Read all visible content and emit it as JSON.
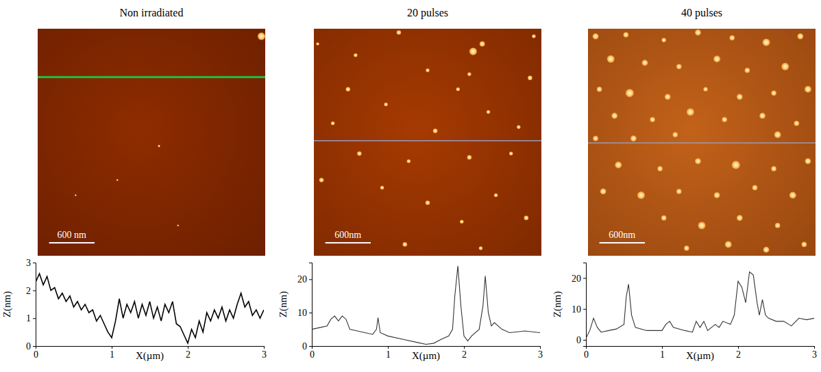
{
  "chart_data": [
    {
      "type": "line",
      "title": "Non irradiated",
      "color": "#000000",
      "x": [
        0,
        0.05,
        0.1,
        0.15,
        0.2,
        0.25,
        0.3,
        0.35,
        0.4,
        0.45,
        0.5,
        0.55,
        0.6,
        0.65,
        0.7,
        0.75,
        0.8,
        0.85,
        0.9,
        0.95,
        1.0,
        1.05,
        1.1,
        1.15,
        1.2,
        1.25,
        1.3,
        1.35,
        1.4,
        1.45,
        1.5,
        1.55,
        1.6,
        1.65,
        1.7,
        1.75,
        1.8,
        1.85,
        1.9,
        1.95,
        2.0,
        2.05,
        2.1,
        2.15,
        2.2,
        2.25,
        2.3,
        2.35,
        2.4,
        2.45,
        2.5,
        2.55,
        2.6,
        2.65,
        2.7,
        2.75,
        2.8,
        2.85,
        2.9,
        2.95,
        3.0
      ],
      "values": [
        2.3,
        2.6,
        2.2,
        2.5,
        2.0,
        2.1,
        1.7,
        1.9,
        1.6,
        1.8,
        1.4,
        1.6,
        1.3,
        1.5,
        1.2,
        1.3,
        0.9,
        1.1,
        0.8,
        0.5,
        0.3,
        0.9,
        1.7,
        1.0,
        1.5,
        1.2,
        1.6,
        1.0,
        1.5,
        1.1,
        1.6,
        1.0,
        1.4,
        0.9,
        1.5,
        1.2,
        1.6,
        0.8,
        0.7,
        0.4,
        0.1,
        0.6,
        0.3,
        0.9,
        0.5,
        1.2,
        0.9,
        1.3,
        1.0,
        1.4,
        0.9,
        1.3,
        1.0,
        1.5,
        1.9,
        1.4,
        1.6,
        1.1,
        1.3,
        1.0,
        1.3
      ],
      "xlim": [
        0,
        3
      ],
      "xticks": [
        0,
        1,
        2,
        3
      ],
      "ylim": [
        0,
        3
      ],
      "yticks": [
        0,
        1,
        2,
        3
      ],
      "x_label": "X(µm)",
      "y_label": "Z(nm)",
      "image": {
        "size": 3,
        "profile_y": 0.64,
        "scale_bar": {
          "length": 0.6,
          "label": "600 nm"
        },
        "particles": [
          [
            2.95,
            0.1,
            0.05
          ],
          [
            1.6,
            1.55,
            0.015
          ],
          [
            1.05,
            2.0,
            0.012
          ],
          [
            1.85,
            2.6,
            0.012
          ],
          [
            0.5,
            2.2,
            0.012
          ]
        ]
      }
    },
    {
      "type": "line",
      "title": "20 pulses",
      "color": "#333333",
      "x": [
        0,
        0.1,
        0.2,
        0.25,
        0.3,
        0.35,
        0.4,
        0.45,
        0.5,
        0.6,
        0.7,
        0.8,
        0.85,
        0.87,
        0.9,
        1.0,
        1.2,
        1.4,
        1.5,
        1.6,
        1.7,
        1.8,
        1.85,
        1.88,
        1.92,
        1.96,
        2.0,
        2.05,
        2.1,
        2.2,
        2.25,
        2.28,
        2.32,
        2.36,
        2.4,
        2.5,
        2.6,
        2.8,
        3.0
      ],
      "values": [
        5,
        5.5,
        6,
        8,
        9,
        7.5,
        9,
        8,
        5,
        4.5,
        4,
        3.5,
        5,
        8.5,
        4,
        3,
        2,
        1,
        0.5,
        0.8,
        2,
        3,
        5,
        15,
        24,
        12,
        3,
        1.5,
        3,
        5,
        12,
        21,
        10,
        6,
        7,
        5,
        4,
        4.5,
        4
      ],
      "xlim": [
        0,
        3
      ],
      "xticks": [
        0,
        1,
        2,
        3
      ],
      "ylim": [
        0,
        25
      ],
      "yticks": [
        0,
        10,
        20
      ],
      "x_label": "X(µm)",
      "y_label": "Z(nm)",
      "image": {
        "size": 3,
        "profile_y": 1.48,
        "scale_bar": {
          "length": 0.6,
          "label": "600nm"
        },
        "particles": [
          [
            1.12,
            0.05,
            0.03
          ],
          [
            2.1,
            0.3,
            0.05
          ],
          [
            2.22,
            0.2,
            0.035
          ],
          [
            0.05,
            0.2,
            0.02
          ],
          [
            0.55,
            0.35,
            0.025
          ],
          [
            1.5,
            0.55,
            0.025
          ],
          [
            2.05,
            0.6,
            0.025
          ],
          [
            2.85,
            0.65,
            0.03
          ],
          [
            0.45,
            0.8,
            0.03
          ],
          [
            1.9,
            0.8,
            0.025
          ],
          [
            0.95,
            1.0,
            0.025
          ],
          [
            2.3,
            1.1,
            0.025
          ],
          [
            0.25,
            1.25,
            0.025
          ],
          [
            1.6,
            1.35,
            0.03
          ],
          [
            2.7,
            1.3,
            0.025
          ],
          [
            0.6,
            1.65,
            0.03
          ],
          [
            1.25,
            1.75,
            0.025
          ],
          [
            2.05,
            1.7,
            0.03
          ],
          [
            2.6,
            1.65,
            0.025
          ],
          [
            0.1,
            2.0,
            0.03
          ],
          [
            0.9,
            2.1,
            0.025
          ],
          [
            1.5,
            2.3,
            0.03
          ],
          [
            2.4,
            2.2,
            0.025
          ],
          [
            1.95,
            2.55,
            0.025
          ],
          [
            2.8,
            2.5,
            0.03
          ],
          [
            1.2,
            2.85,
            0.03
          ],
          [
            2.2,
            2.9,
            0.025
          ],
          [
            2.9,
            0.1,
            0.025
          ]
        ]
      }
    },
    {
      "type": "line",
      "title": "40 pulses",
      "color": "#333333",
      "x": [
        0,
        0.05,
        0.1,
        0.15,
        0.2,
        0.3,
        0.4,
        0.5,
        0.53,
        0.56,
        0.6,
        0.65,
        0.8,
        1.0,
        1.05,
        1.1,
        1.15,
        1.3,
        1.4,
        1.45,
        1.5,
        1.55,
        1.6,
        1.7,
        1.75,
        1.8,
        1.9,
        1.95,
        2.0,
        2.05,
        2.1,
        2.15,
        2.2,
        2.25,
        2.28,
        2.32,
        2.36,
        2.4,
        2.5,
        2.6,
        2.7,
        2.8,
        2.9,
        3.0
      ],
      "values": [
        0.5,
        3,
        7,
        4,
        2.5,
        3,
        3.5,
        5,
        14,
        18,
        8,
        4,
        3,
        3,
        5,
        6,
        4,
        3,
        2.5,
        6,
        4,
        6,
        3,
        5,
        4,
        6,
        5,
        8,
        19,
        17,
        12,
        22,
        21,
        12,
        8,
        13,
        8,
        7,
        6,
        6,
        4.5,
        7,
        6.5,
        7
      ],
      "xlim": [
        0,
        3
      ],
      "xticks": [
        0,
        1,
        2,
        3
      ],
      "ylim": [
        -2,
        25
      ],
      "yticks": [
        0,
        10,
        20
      ],
      "x_label": "X(µm)",
      "y_label": "Z(nm)",
      "image": {
        "size": 3,
        "profile_y": 1.51,
        "scale_bar": {
          "length": 0.6,
          "label": "600nm"
        },
        "particles": [
          [
            0.1,
            0.1,
            0.04
          ],
          [
            0.5,
            0.08,
            0.035
          ],
          [
            1.0,
            0.15,
            0.03
          ],
          [
            1.45,
            0.05,
            0.04
          ],
          [
            1.9,
            0.12,
            0.035
          ],
          [
            2.35,
            0.18,
            0.05
          ],
          [
            2.8,
            0.1,
            0.04
          ],
          [
            0.3,
            0.4,
            0.05
          ],
          [
            0.75,
            0.45,
            0.04
          ],
          [
            1.2,
            0.5,
            0.035
          ],
          [
            1.7,
            0.4,
            0.045
          ],
          [
            2.1,
            0.55,
            0.035
          ],
          [
            2.6,
            0.5,
            0.05
          ],
          [
            0.15,
            0.8,
            0.035
          ],
          [
            0.55,
            0.85,
            0.055
          ],
          [
            1.05,
            0.9,
            0.04
          ],
          [
            1.55,
            0.8,
            0.03
          ],
          [
            2.0,
            0.9,
            0.04
          ],
          [
            2.45,
            0.85,
            0.035
          ],
          [
            2.9,
            0.8,
            0.045
          ],
          [
            0.35,
            1.15,
            0.04
          ],
          [
            0.85,
            1.2,
            0.035
          ],
          [
            1.35,
            1.1,
            0.05
          ],
          [
            1.8,
            1.2,
            0.035
          ],
          [
            2.3,
            1.15,
            0.04
          ],
          [
            2.75,
            1.25,
            0.035
          ],
          [
            0.1,
            1.45,
            0.035
          ],
          [
            0.6,
            1.45,
            0.04
          ],
          [
            1.15,
            1.4,
            0.035
          ],
          [
            2.5,
            1.4,
            0.045
          ],
          [
            0.4,
            1.8,
            0.045
          ],
          [
            0.95,
            1.85,
            0.035
          ],
          [
            1.45,
            1.75,
            0.04
          ],
          [
            1.95,
            1.8,
            0.055
          ],
          [
            2.45,
            1.85,
            0.035
          ],
          [
            2.9,
            1.75,
            0.04
          ],
          [
            0.2,
            2.15,
            0.04
          ],
          [
            0.7,
            2.2,
            0.05
          ],
          [
            1.2,
            2.15,
            0.035
          ],
          [
            1.7,
            2.2,
            0.04
          ],
          [
            2.2,
            2.1,
            0.035
          ],
          [
            2.7,
            2.2,
            0.045
          ],
          [
            1.0,
            2.5,
            0.035
          ],
          [
            1.5,
            2.6,
            0.05
          ],
          [
            2.0,
            2.5,
            0.04
          ],
          [
            2.5,
            2.6,
            0.035
          ],
          [
            1.3,
            2.9,
            0.035
          ],
          [
            1.85,
            2.85,
            0.045
          ],
          [
            2.35,
            2.92,
            0.04
          ],
          [
            2.85,
            2.85,
            0.035
          ]
        ]
      }
    }
  ]
}
